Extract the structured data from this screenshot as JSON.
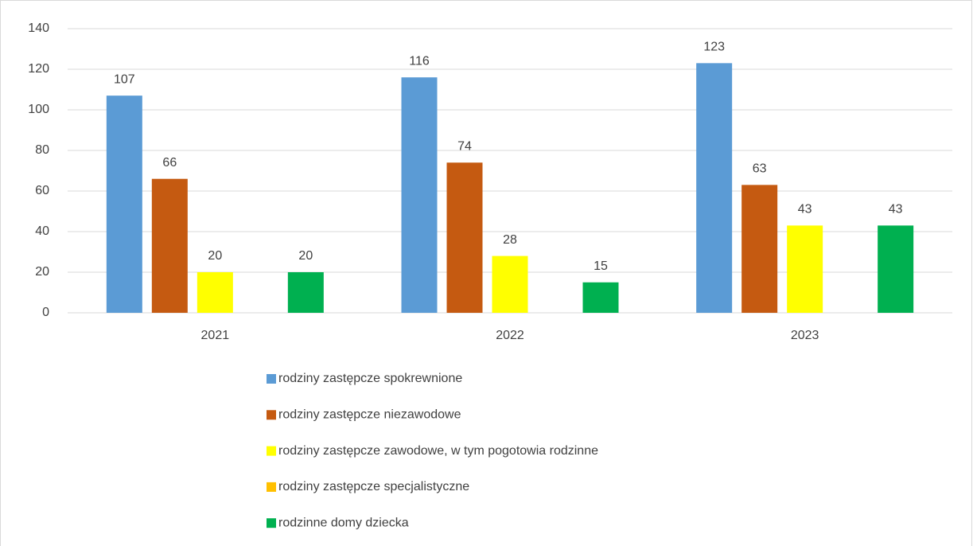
{
  "chart_data": {
    "type": "bar",
    "categories": [
      "2021",
      "2022",
      "2023"
    ],
    "series": [
      {
        "name": "rodziny zastępcze spokrewnione",
        "color": "#5b9bd5",
        "values": [
          107,
          116,
          123
        ]
      },
      {
        "name": "rodziny zastępcze niezawodowe",
        "color": "#c55a11",
        "values": [
          66,
          74,
          63
        ]
      },
      {
        "name": "rodziny zastępcze zawodowe, w tym pogotowia rodzinne",
        "color": "#ffff00",
        "values": [
          20,
          28,
          43
        ]
      },
      {
        "name": "rodziny zastępcze specjalistyczne",
        "color": "#ffc000",
        "values": [
          null,
          null,
          null
        ]
      },
      {
        "name": "rodzinne domy dziecka",
        "color": "#00b050",
        "values": [
          20,
          15,
          43
        ]
      }
    ],
    "ylim": [
      0,
      140
    ],
    "yticks": [
      0,
      20,
      40,
      60,
      80,
      100,
      120,
      140
    ],
    "grid": true,
    "legend": "bottom"
  }
}
